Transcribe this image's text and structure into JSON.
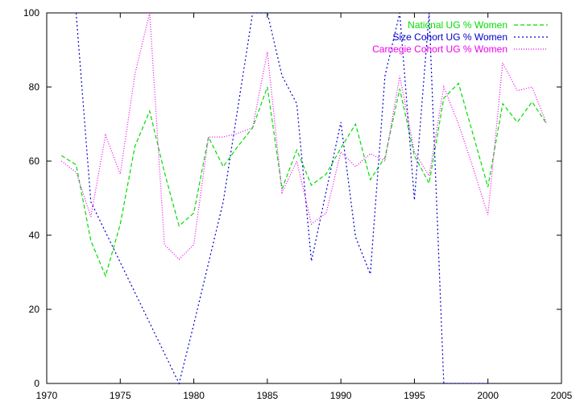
{
  "chart_data": {
    "type": "line",
    "title": "",
    "xlabel": "",
    "ylabel": "",
    "xlim": [
      1970,
      2005
    ],
    "ylim": [
      0,
      100
    ],
    "xticks": [
      1970,
      1975,
      1980,
      1985,
      1990,
      1995,
      2000,
      2005
    ],
    "yticks": [
      0,
      20,
      40,
      60,
      80,
      100
    ],
    "grid": false,
    "legend_position": "top-right",
    "series": [
      {
        "name": "National UG % Women",
        "color": "#00dd00",
        "dash": "dashed",
        "x": [
          1971,
          1972,
          1973,
          1974,
          1975,
          1976,
          1977,
          1978,
          1979,
          1980,
          1981,
          1982,
          1983,
          1984,
          1985,
          1986,
          1987,
          1988,
          1989,
          1990,
          1991,
          1992,
          1993,
          1994,
          1995,
          1996,
          1997,
          1998,
          1999,
          2000,
          2001,
          2002,
          2003,
          2004
        ],
        "y": [
          61.5,
          59,
          38.5,
          29,
          43,
          64,
          73.5,
          57,
          42.5,
          46,
          66.5,
          58.5,
          64,
          69,
          80,
          52.5,
          63,
          53.5,
          56.5,
          63.5,
          70,
          55,
          61,
          79.5,
          61.5,
          54,
          77,
          81,
          67,
          53,
          75.5,
          70.5,
          76,
          70
        ]
      },
      {
        "name": "Size Cohort UG % Women",
        "color": "#0000cc",
        "dash": "dotted",
        "x": [
          1972,
          1973,
          1979,
          1980,
          1982,
          1984,
          1985,
          1986,
          1987,
          1988,
          1990,
          1991,
          1992,
          1993,
          1994,
          1994.4,
          1995,
          1995.6,
          1996,
          1997,
          2000
        ],
        "y": [
          100,
          49,
          0,
          16,
          49,
          100,
          100,
          83,
          75.5,
          33,
          70.5,
          39.5,
          29.5,
          83,
          100,
          80,
          49.5,
          80,
          100,
          0,
          0
        ]
      },
      {
        "name": "Carnegie Cohort UG % Women",
        "color": "#ee00ee",
        "dash": "dense-dotted",
        "x": [
          1971,
          1972,
          1973,
          1974,
          1975,
          1976,
          1977,
          1978,
          1979,
          1980,
          1981,
          1982,
          1983,
          1984,
          1985,
          1986,
          1987,
          1988,
          1989,
          1990,
          1991,
          1992,
          1993,
          1994,
          1995,
          1996,
          1997,
          1998,
          1999,
          2000,
          2001,
          2002,
          2003,
          2004
        ],
        "y": [
          60,
          57,
          45,
          67,
          56.5,
          83.5,
          100,
          37.5,
          33.5,
          37.5,
          66.5,
          66.5,
          67.5,
          69,
          89.5,
          51.5,
          60,
          43,
          46,
          62.5,
          58.5,
          62,
          60,
          83,
          62.5,
          56,
          80,
          70,
          58,
          45.5,
          86.5,
          79,
          80,
          70
        ]
      }
    ]
  }
}
